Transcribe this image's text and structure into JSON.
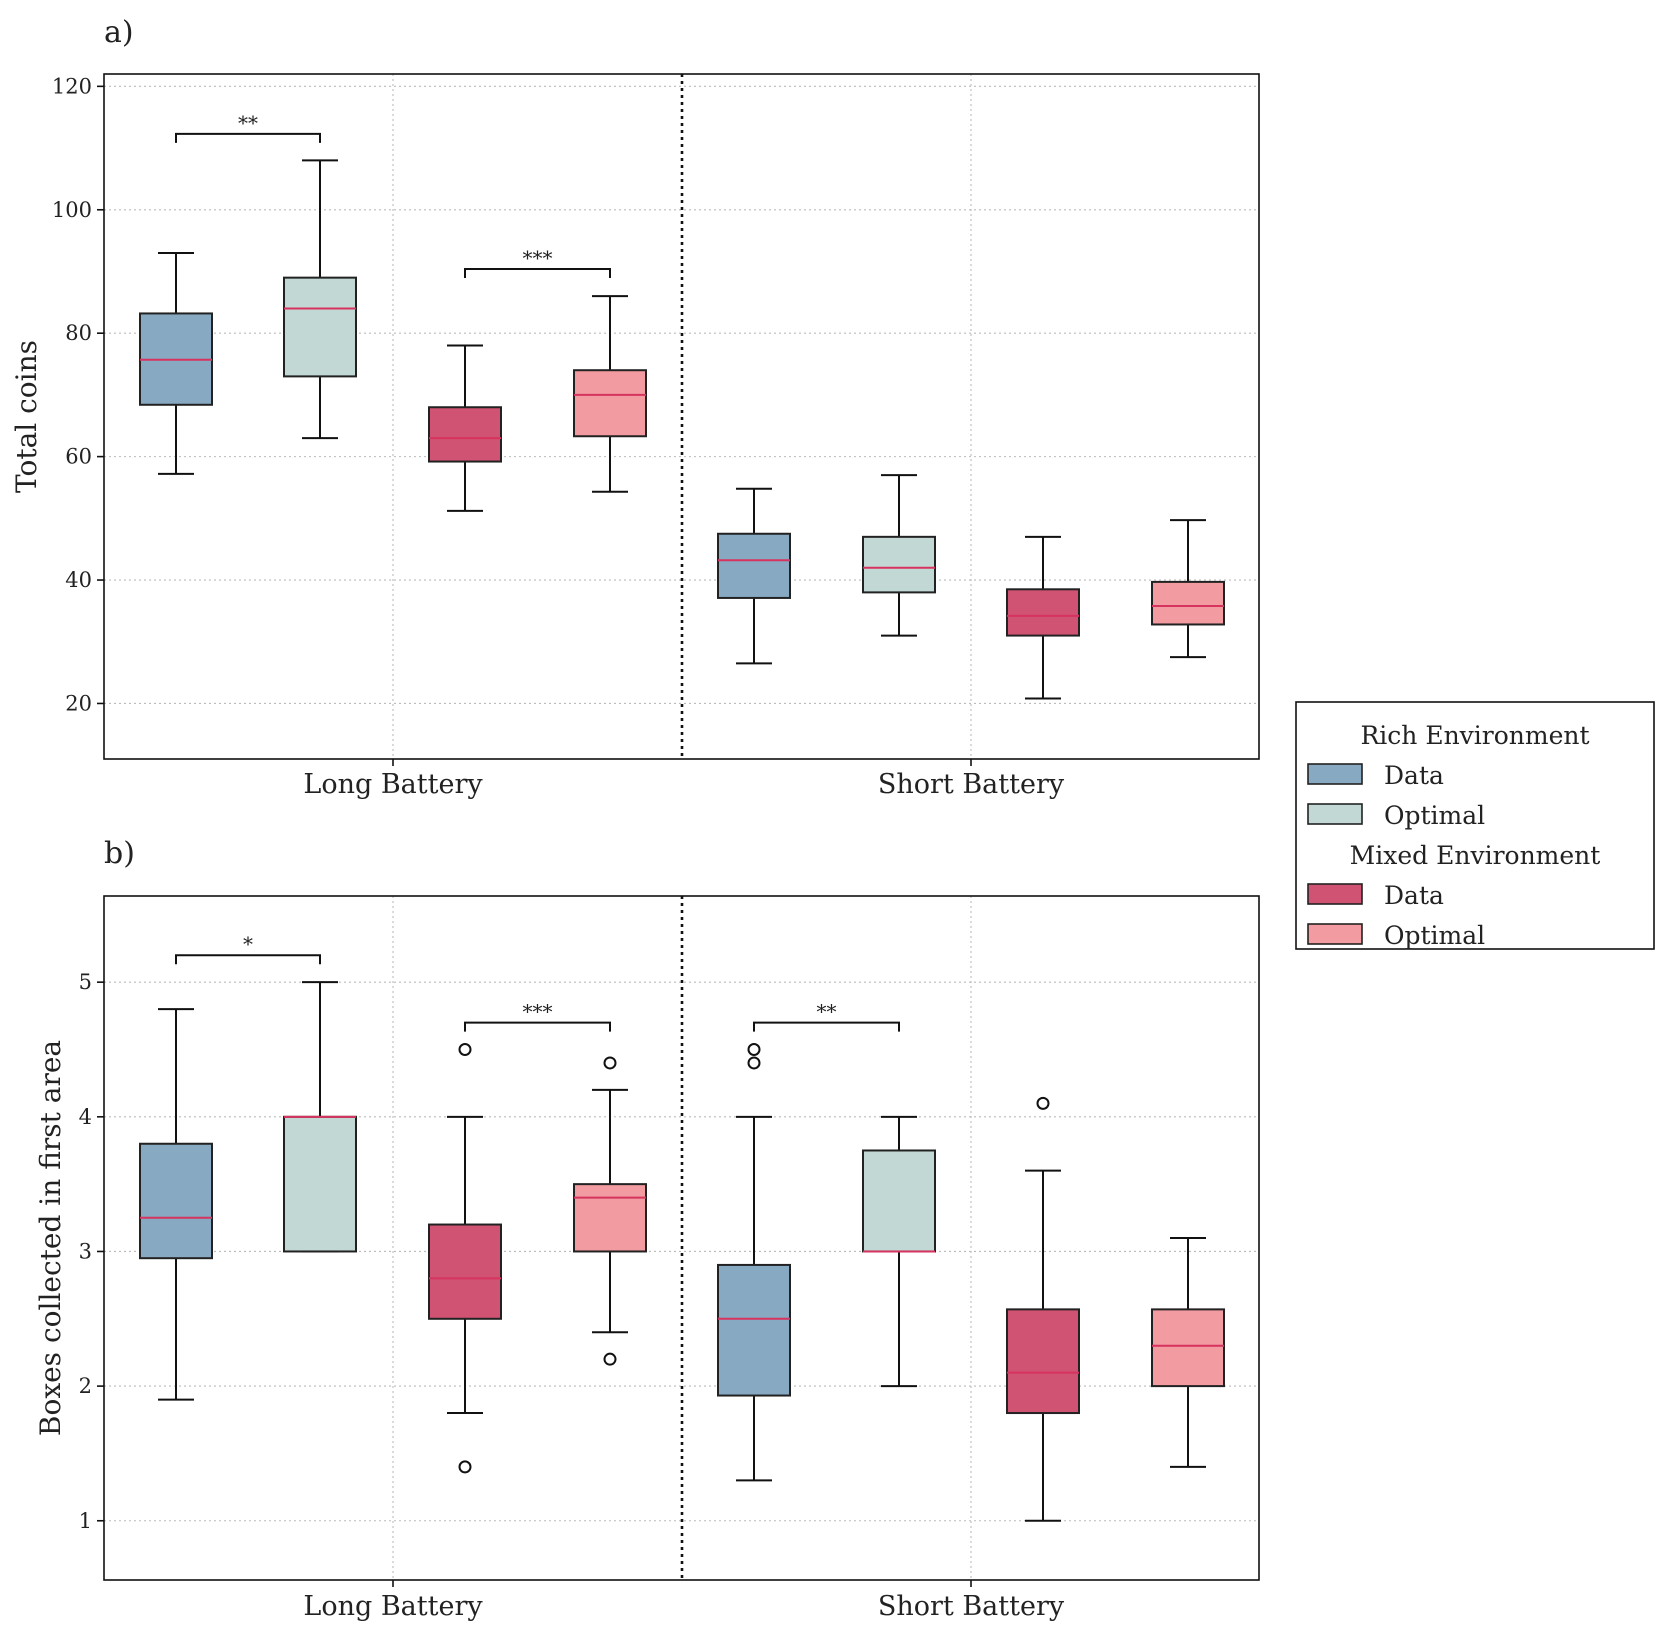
{
  "colors": {
    "rich_data": "#87a9c2",
    "rich_optimal": "#c2d8d5",
    "mixed_data": "#d05373",
    "mixed_optimal": "#f29ba0",
    "median": "#d6335e",
    "edge": "#222222"
  },
  "legend": {
    "groups": [
      {
        "title": "Rich Environment",
        "items": [
          {
            "label": "Data",
            "color_key": "rich_data"
          },
          {
            "label": "Optimal",
            "color_key": "rich_optimal"
          }
        ]
      },
      {
        "title": "Mixed Environment",
        "items": [
          {
            "label": "Data",
            "color_key": "mixed_data"
          },
          {
            "label": "Optimal",
            "color_key": "mixed_optimal"
          }
        ]
      }
    ]
  },
  "chart_data": [
    {
      "type": "box",
      "panel_label": "a)",
      "ylabel": "Total coins",
      "categories": [
        "Long Battery",
        "Short Battery"
      ],
      "ylim": [
        11,
        122
      ],
      "yticks": [
        20,
        40,
        60,
        80,
        100,
        120
      ],
      "grid": true,
      "boxes": [
        {
          "category": "Long Battery",
          "group": "rich_data",
          "whisker_low": 57.2,
          "q1": 68.4,
          "median": 75.7,
          "q3": 83.2,
          "whisker_high": 93.0,
          "outliers": []
        },
        {
          "category": "Long Battery",
          "group": "rich_optimal",
          "whisker_low": 63.0,
          "q1": 73.0,
          "median": 84.0,
          "q3": 89.0,
          "whisker_high": 108.0,
          "outliers": []
        },
        {
          "category": "Long Battery",
          "group": "mixed_data",
          "whisker_low": 51.2,
          "q1": 59.2,
          "median": 63.0,
          "q3": 68.0,
          "whisker_high": 78.0,
          "outliers": []
        },
        {
          "category": "Long Battery",
          "group": "mixed_optimal",
          "whisker_low": 54.3,
          "q1": 63.3,
          "median": 70.0,
          "q3": 74.0,
          "whisker_high": 86.0,
          "outliers": []
        },
        {
          "category": "Short Battery",
          "group": "rich_data",
          "whisker_low": 26.5,
          "q1": 37.1,
          "median": 43.2,
          "q3": 47.5,
          "whisker_high": 54.8,
          "outliers": []
        },
        {
          "category": "Short Battery",
          "group": "rich_optimal",
          "whisker_low": 31.0,
          "q1": 38.0,
          "median": 42.0,
          "q3": 47.0,
          "whisker_high": 57.0,
          "outliers": []
        },
        {
          "category": "Short Battery",
          "group": "mixed_data",
          "whisker_low": 20.8,
          "q1": 31.0,
          "median": 34.2,
          "q3": 38.5,
          "whisker_high": 47.0,
          "outliers": []
        },
        {
          "category": "Short Battery",
          "group": "mixed_optimal",
          "whisker_low": 27.5,
          "q1": 32.8,
          "median": 35.8,
          "q3": 39.7,
          "whisker_high": 49.7,
          "outliers": []
        }
      ],
      "significance": [
        {
          "from_box": 0,
          "to_box": 1,
          "y": 112.3,
          "label": "**"
        },
        {
          "from_box": 2,
          "to_box": 3,
          "y": 90.4,
          "label": "***"
        }
      ]
    },
    {
      "type": "box",
      "panel_label": "b)",
      "ylabel": "Boxes collected in first area",
      "categories": [
        "Long Battery",
        "Short Battery"
      ],
      "ylim": [
        0.56,
        5.64
      ],
      "yticks": [
        1,
        2,
        3,
        4,
        5
      ],
      "grid": true,
      "boxes": [
        {
          "category": "Long Battery",
          "group": "rich_data",
          "whisker_low": 1.9,
          "q1": 2.95,
          "median": 3.25,
          "q3": 3.8,
          "whisker_high": 4.8,
          "outliers": []
        },
        {
          "category": "Long Battery",
          "group": "rich_optimal",
          "whisker_low": 3.0,
          "q1": 3.0,
          "median": 4.0,
          "q3": 4.0,
          "whisker_high": 5.0,
          "outliers": []
        },
        {
          "category": "Long Battery",
          "group": "mixed_data",
          "whisker_low": 1.8,
          "q1": 2.5,
          "median": 2.8,
          "q3": 3.2,
          "whisker_high": 4.0,
          "outliers": [
            4.5,
            1.4
          ]
        },
        {
          "category": "Long Battery",
          "group": "mixed_optimal",
          "whisker_low": 2.4,
          "q1": 3.0,
          "median": 3.4,
          "q3": 3.5,
          "whisker_high": 4.2,
          "outliers": [
            4.4,
            2.2
          ]
        },
        {
          "category": "Short Battery",
          "group": "rich_data",
          "whisker_low": 1.3,
          "q1": 1.93,
          "median": 2.5,
          "q3": 2.9,
          "whisker_high": 4.0,
          "outliers": [
            4.5,
            4.4
          ]
        },
        {
          "category": "Short Battery",
          "group": "rich_optimal",
          "whisker_low": 2.0,
          "q1": 3.0,
          "median": 3.0,
          "q3": 3.75,
          "whisker_high": 4.0,
          "outliers": []
        },
        {
          "category": "Short Battery",
          "group": "mixed_data",
          "whisker_low": 1.0,
          "q1": 1.8,
          "median": 2.1,
          "q3": 2.57,
          "whisker_high": 3.6,
          "outliers": [
            4.1
          ]
        },
        {
          "category": "Short Battery",
          "group": "mixed_optimal",
          "whisker_low": 1.4,
          "q1": 2.0,
          "median": 2.3,
          "q3": 2.57,
          "whisker_high": 3.1,
          "outliers": []
        }
      ],
      "significance": [
        {
          "from_box": 0,
          "to_box": 1,
          "y": 5.2,
          "label": "*"
        },
        {
          "from_box": 2,
          "to_box": 3,
          "y": 4.7,
          "label": "***"
        },
        {
          "from_box": 4,
          "to_box": 5,
          "y": 4.7,
          "label": "**"
        }
      ]
    }
  ]
}
